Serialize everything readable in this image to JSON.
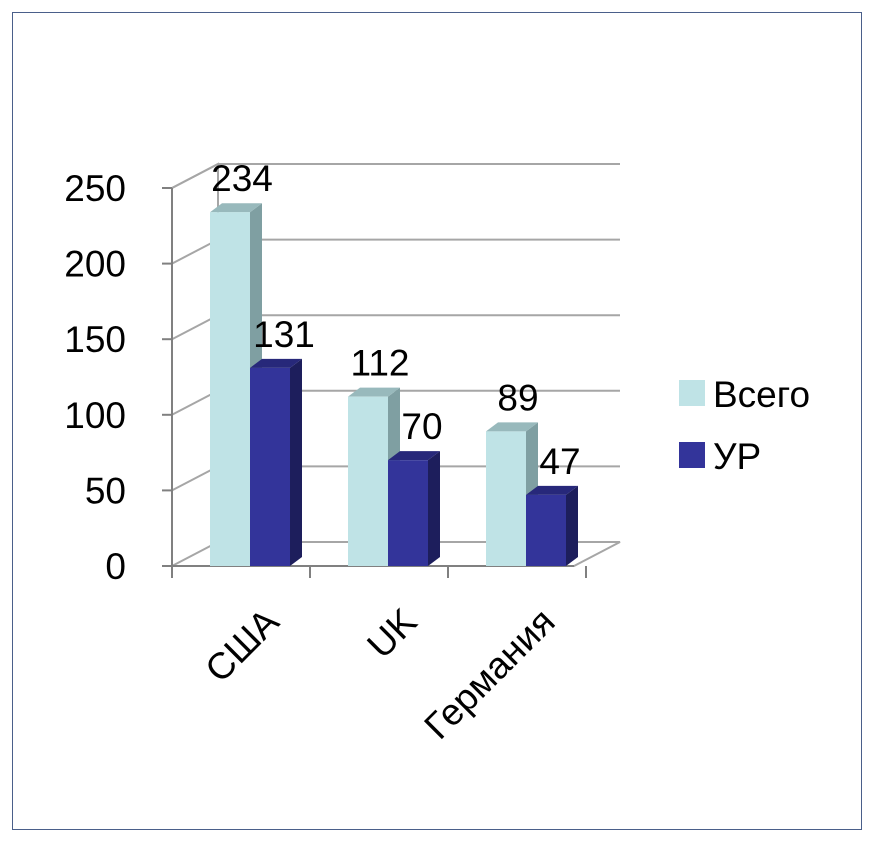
{
  "chart_data": {
    "type": "bar",
    "categories": [
      "США",
      "UK",
      "Германия"
    ],
    "series": [
      {
        "name": "Всего",
        "values": [
          234,
          112,
          89
        ],
        "color": "#bfe3e6",
        "side_color": "#7f9fa2",
        "top_color": "#98b9bc"
      },
      {
        "name": "УР",
        "values": [
          131,
          70,
          47
        ],
        "color": "#33349a",
        "side_color": "#1d1e5c",
        "top_color": "#27287a"
      }
    ],
    "yticks": [
      "0",
      "50",
      "100",
      "150",
      "200",
      "250"
    ],
    "ylim": [
      0,
      250
    ],
    "grid": true,
    "legend_position": "right",
    "style": "3d-clustered-column"
  }
}
